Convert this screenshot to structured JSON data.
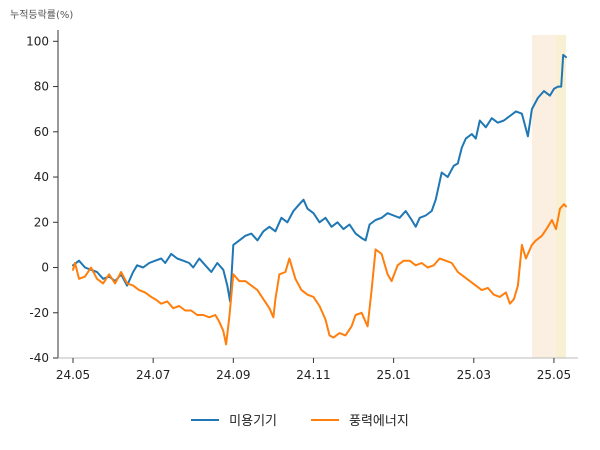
{
  "chart_data": {
    "type": "line",
    "ylabel": "누적등락률(%)",
    "ylim": [
      -40,
      105
    ],
    "yticks": [
      -40,
      -20,
      0,
      20,
      40,
      60,
      80,
      100
    ],
    "xlim": [
      0,
      12.6
    ],
    "xticks": [
      {
        "label": "24.05",
        "x": 0
      },
      {
        "label": "24.07",
        "x": 2
      },
      {
        "label": "24.09",
        "x": 4
      },
      {
        "label": "24.11",
        "x": 6
      },
      {
        "label": "25.01",
        "x": 8
      },
      {
        "label": "25.03",
        "x": 10
      },
      {
        "label": "25.05",
        "x": 12
      }
    ],
    "highlights": [
      {
        "from": 11.45,
        "to": 12.05,
        "color": "#fbefe2"
      },
      {
        "from": 12.05,
        "to": 12.3,
        "color": "#f7f0d2"
      }
    ],
    "series": [
      {
        "name": "미용기기",
        "color": "#1f77b4",
        "points": [
          [
            0.0,
            1
          ],
          [
            0.15,
            3
          ],
          [
            0.3,
            0
          ],
          [
            0.45,
            -1
          ],
          [
            0.6,
            -2
          ],
          [
            0.75,
            -5
          ],
          [
            0.9,
            -4
          ],
          [
            1.05,
            -6
          ],
          [
            1.2,
            -3
          ],
          [
            1.35,
            -8
          ],
          [
            1.5,
            -2
          ],
          [
            1.6,
            1
          ],
          [
            1.75,
            0
          ],
          [
            1.9,
            2
          ],
          [
            2.05,
            3
          ],
          [
            2.2,
            4
          ],
          [
            2.3,
            2
          ],
          [
            2.45,
            6
          ],
          [
            2.6,
            4
          ],
          [
            2.75,
            3
          ],
          [
            2.9,
            2
          ],
          [
            3.0,
            0
          ],
          [
            3.15,
            4
          ],
          [
            3.3,
            1
          ],
          [
            3.45,
            -2
          ],
          [
            3.6,
            2
          ],
          [
            3.75,
            -1
          ],
          [
            3.85,
            -8
          ],
          [
            3.92,
            -15
          ],
          [
            4.0,
            10
          ],
          [
            4.15,
            12
          ],
          [
            4.3,
            14
          ],
          [
            4.45,
            15
          ],
          [
            4.6,
            12
          ],
          [
            4.75,
            16
          ],
          [
            4.9,
            18
          ],
          [
            5.05,
            16
          ],
          [
            5.2,
            22
          ],
          [
            5.35,
            20
          ],
          [
            5.5,
            25
          ],
          [
            5.65,
            28
          ],
          [
            5.75,
            30
          ],
          [
            5.85,
            26
          ],
          [
            6.0,
            24
          ],
          [
            6.15,
            20
          ],
          [
            6.3,
            22
          ],
          [
            6.45,
            18
          ],
          [
            6.6,
            20
          ],
          [
            6.75,
            17
          ],
          [
            6.9,
            19
          ],
          [
            7.05,
            15
          ],
          [
            7.2,
            13
          ],
          [
            7.3,
            12
          ],
          [
            7.4,
            19
          ],
          [
            7.55,
            21
          ],
          [
            7.7,
            22
          ],
          [
            7.85,
            24
          ],
          [
            8.0,
            23
          ],
          [
            8.15,
            22
          ],
          [
            8.3,
            25
          ],
          [
            8.45,
            21
          ],
          [
            8.55,
            18
          ],
          [
            8.65,
            22
          ],
          [
            8.8,
            23
          ],
          [
            8.95,
            25
          ],
          [
            9.05,
            30
          ],
          [
            9.2,
            42
          ],
          [
            9.35,
            40
          ],
          [
            9.5,
            45
          ],
          [
            9.6,
            46
          ],
          [
            9.7,
            53
          ],
          [
            9.8,
            57
          ],
          [
            9.95,
            59
          ],
          [
            10.05,
            57
          ],
          [
            10.15,
            65
          ],
          [
            10.3,
            62
          ],
          [
            10.45,
            66
          ],
          [
            10.6,
            64
          ],
          [
            10.75,
            65
          ],
          [
            10.9,
            67
          ],
          [
            11.05,
            69
          ],
          [
            11.2,
            68
          ],
          [
            11.35,
            58
          ],
          [
            11.45,
            70
          ],
          [
            11.6,
            75
          ],
          [
            11.75,
            78
          ],
          [
            11.9,
            76
          ],
          [
            12.0,
            79
          ],
          [
            12.1,
            80
          ],
          [
            12.18,
            80
          ],
          [
            12.23,
            94
          ],
          [
            12.3,
            93
          ]
        ]
      },
      {
        "name": "풍력에너지",
        "color": "#ff7f0e",
        "points": [
          [
            0.0,
            -1
          ],
          [
            0.05,
            2
          ],
          [
            0.15,
            -5
          ],
          [
            0.3,
            -4
          ],
          [
            0.45,
            0
          ],
          [
            0.6,
            -5
          ],
          [
            0.75,
            -7
          ],
          [
            0.9,
            -3
          ],
          [
            1.05,
            -7
          ],
          [
            1.2,
            -2
          ],
          [
            1.35,
            -7
          ],
          [
            1.5,
            -8
          ],
          [
            1.65,
            -10
          ],
          [
            1.8,
            -11
          ],
          [
            1.95,
            -13
          ],
          [
            2.05,
            -14
          ],
          [
            2.2,
            -16
          ],
          [
            2.35,
            -15
          ],
          [
            2.5,
            -18
          ],
          [
            2.65,
            -17
          ],
          [
            2.8,
            -19
          ],
          [
            2.95,
            -19
          ],
          [
            3.1,
            -21
          ],
          [
            3.25,
            -21
          ],
          [
            3.4,
            -22
          ],
          [
            3.55,
            -21
          ],
          [
            3.65,
            -24
          ],
          [
            3.75,
            -28
          ],
          [
            3.82,
            -34
          ],
          [
            3.9,
            -22
          ],
          [
            4.0,
            -3
          ],
          [
            4.15,
            -6
          ],
          [
            4.3,
            -6
          ],
          [
            4.45,
            -8
          ],
          [
            4.6,
            -10
          ],
          [
            4.75,
            -14
          ],
          [
            4.9,
            -18
          ],
          [
            5.0,
            -22
          ],
          [
            5.05,
            -14
          ],
          [
            5.15,
            -3
          ],
          [
            5.3,
            -2
          ],
          [
            5.4,
            4
          ],
          [
            5.55,
            -5
          ],
          [
            5.7,
            -10
          ],
          [
            5.85,
            -12
          ],
          [
            6.0,
            -13
          ],
          [
            6.15,
            -17
          ],
          [
            6.3,
            -23
          ],
          [
            6.4,
            -30
          ],
          [
            6.5,
            -31
          ],
          [
            6.65,
            -29
          ],
          [
            6.8,
            -30
          ],
          [
            6.95,
            -26
          ],
          [
            7.05,
            -21
          ],
          [
            7.2,
            -20
          ],
          [
            7.35,
            -26
          ],
          [
            7.45,
            -10
          ],
          [
            7.55,
            8
          ],
          [
            7.7,
            6
          ],
          [
            7.85,
            -3
          ],
          [
            7.95,
            -6
          ],
          [
            8.1,
            1
          ],
          [
            8.25,
            3
          ],
          [
            8.4,
            3
          ],
          [
            8.55,
            1
          ],
          [
            8.7,
            2
          ],
          [
            8.85,
            0
          ],
          [
            9.0,
            1
          ],
          [
            9.15,
            4
          ],
          [
            9.3,
            3
          ],
          [
            9.45,
            2
          ],
          [
            9.6,
            -2
          ],
          [
            9.75,
            -4
          ],
          [
            9.9,
            -6
          ],
          [
            10.05,
            -8
          ],
          [
            10.2,
            -10
          ],
          [
            10.35,
            -9
          ],
          [
            10.5,
            -12
          ],
          [
            10.65,
            -13
          ],
          [
            10.8,
            -11
          ],
          [
            10.9,
            -16
          ],
          [
            11.0,
            -14
          ],
          [
            11.1,
            -8
          ],
          [
            11.2,
            10
          ],
          [
            11.3,
            4
          ],
          [
            11.45,
            10
          ],
          [
            11.55,
            12
          ],
          [
            11.7,
            14
          ],
          [
            11.85,
            18
          ],
          [
            11.95,
            21
          ],
          [
            12.05,
            17
          ],
          [
            12.15,
            26
          ],
          [
            12.25,
            28
          ],
          [
            12.3,
            27
          ]
        ]
      }
    ]
  }
}
